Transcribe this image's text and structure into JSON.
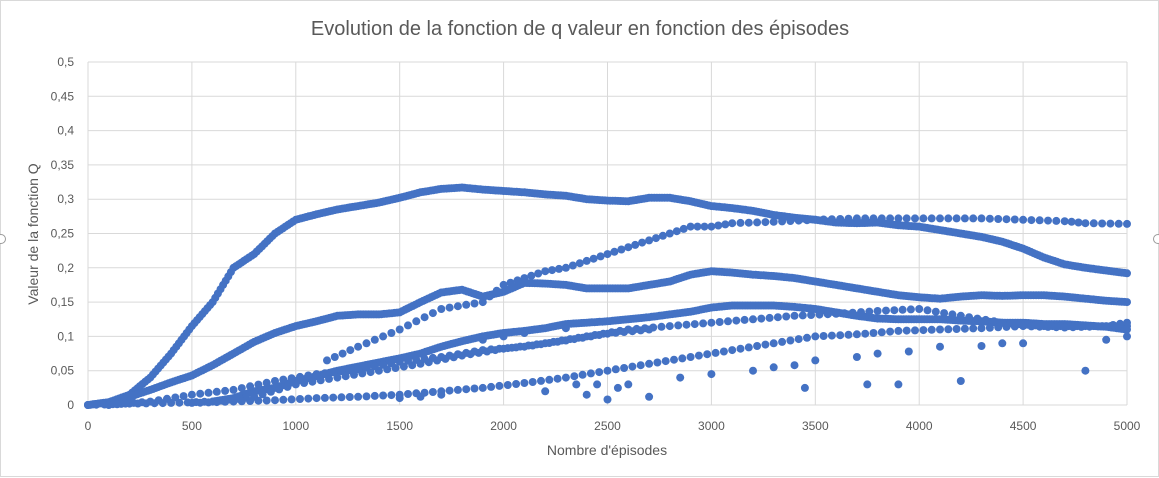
{
  "chart_data": {
    "type": "scatter",
    "title": "Evolution de la fonction de q valeur en fonction des épisodes",
    "xlabel": "Nombre d'épisodes",
    "ylabel": "Valeur de la fonction Q",
    "xlim": [
      0,
      5000
    ],
    "ylim": [
      0,
      0.5
    ],
    "x_ticks": [
      "0",
      "500",
      "1000",
      "1500",
      "2000",
      "2500",
      "3000",
      "3500",
      "4000",
      "4500",
      "5000"
    ],
    "y_ticks": [
      "0",
      "0,05",
      "0,1",
      "0,15",
      "0,2",
      "0,25",
      "0,3",
      "0,35",
      "0,4",
      "0,45",
      "0,5"
    ],
    "grid": true,
    "legend": "none",
    "marker_color": "#4472c4",
    "series": [
      {
        "points": [
          [
            0,
            0.0
          ],
          [
            100,
            0.004
          ],
          [
            200,
            0.015
          ],
          [
            300,
            0.04
          ],
          [
            400,
            0.075
          ],
          [
            500,
            0.115
          ],
          [
            600,
            0.15
          ],
          [
            700,
            0.2
          ],
          [
            800,
            0.22
          ],
          [
            900,
            0.25
          ],
          [
            1000,
            0.27
          ],
          [
            1100,
            0.278
          ],
          [
            1200,
            0.285
          ],
          [
            1300,
            0.29
          ],
          [
            1400,
            0.295
          ],
          [
            1500,
            0.302
          ],
          [
            1600,
            0.31
          ],
          [
            1700,
            0.315
          ],
          [
            1800,
            0.317
          ],
          [
            1900,
            0.314
          ],
          [
            2000,
            0.312
          ],
          [
            2100,
            0.31
          ],
          [
            2200,
            0.307
          ],
          [
            2300,
            0.305
          ],
          [
            2400,
            0.3
          ],
          [
            2500,
            0.298
          ],
          [
            2600,
            0.297
          ],
          [
            2700,
            0.302
          ],
          [
            2800,
            0.302
          ],
          [
            2900,
            0.297
          ],
          [
            3000,
            0.29
          ],
          [
            3100,
            0.287
          ],
          [
            3200,
            0.283
          ],
          [
            3300,
            0.277
          ],
          [
            3400,
            0.273
          ],
          [
            3500,
            0.27
          ],
          [
            3600,
            0.266
          ],
          [
            3700,
            0.265
          ],
          [
            3800,
            0.266
          ],
          [
            3900,
            0.262
          ],
          [
            4000,
            0.26
          ],
          [
            4100,
            0.255
          ],
          [
            4200,
            0.25
          ],
          [
            4300,
            0.245
          ],
          [
            4400,
            0.238
          ],
          [
            4500,
            0.228
          ],
          [
            4600,
            0.215
          ],
          [
            4700,
            0.205
          ],
          [
            4800,
            0.2
          ],
          [
            4900,
            0.196
          ],
          [
            5000,
            0.192
          ]
        ]
      },
      {
        "points": [
          [
            0,
            0.0
          ],
          [
            100,
            0.004
          ],
          [
            200,
            0.012
          ],
          [
            300,
            0.022
          ],
          [
            400,
            0.033
          ],
          [
            500,
            0.043
          ],
          [
            600,
            0.058
          ],
          [
            700,
            0.075
          ],
          [
            800,
            0.092
          ],
          [
            900,
            0.105
          ],
          [
            1000,
            0.115
          ],
          [
            1100,
            0.122
          ],
          [
            1200,
            0.13
          ],
          [
            1300,
            0.132
          ],
          [
            1400,
            0.132
          ],
          [
            1500,
            0.135
          ],
          [
            1600,
            0.15
          ],
          [
            1700,
            0.164
          ],
          [
            1800,
            0.168
          ],
          [
            1900,
            0.158
          ],
          [
            2000,
            0.165
          ],
          [
            2100,
            0.178
          ],
          [
            2200,
            0.177
          ],
          [
            2300,
            0.175
          ],
          [
            2400,
            0.17
          ],
          [
            2500,
            0.17
          ],
          [
            2600,
            0.17
          ],
          [
            2700,
            0.175
          ],
          [
            2800,
            0.18
          ],
          [
            2900,
            0.19
          ],
          [
            3000,
            0.195
          ],
          [
            3100,
            0.193
          ],
          [
            3200,
            0.19
          ],
          [
            3300,
            0.188
          ],
          [
            3400,
            0.185
          ],
          [
            3500,
            0.18
          ],
          [
            3600,
            0.175
          ],
          [
            3700,
            0.17
          ],
          [
            3800,
            0.165
          ],
          [
            3900,
            0.16
          ],
          [
            4000,
            0.157
          ],
          [
            4100,
            0.155
          ],
          [
            4200,
            0.158
          ],
          [
            4300,
            0.16
          ],
          [
            4400,
            0.159
          ],
          [
            4500,
            0.16
          ],
          [
            4600,
            0.16
          ],
          [
            4700,
            0.158
          ],
          [
            4800,
            0.155
          ],
          [
            4900,
            0.152
          ],
          [
            5000,
            0.15
          ]
        ]
      },
      {
        "points": [
          [
            600,
            0.005
          ],
          [
            700,
            0.01
          ],
          [
            800,
            0.02
          ],
          [
            900,
            0.025
          ],
          [
            1000,
            0.035
          ],
          [
            1100,
            0.042
          ],
          [
            1200,
            0.05
          ],
          [
            1300,
            0.056
          ],
          [
            1400,
            0.062
          ],
          [
            1500,
            0.068
          ],
          [
            1600,
            0.075
          ],
          [
            1700,
            0.085
          ],
          [
            1800,
            0.093
          ],
          [
            1900,
            0.1
          ],
          [
            2000,
            0.105
          ],
          [
            2100,
            0.108
          ],
          [
            2200,
            0.112
          ],
          [
            2300,
            0.118
          ],
          [
            2400,
            0.12
          ],
          [
            2500,
            0.122
          ],
          [
            2600,
            0.125
          ],
          [
            2700,
            0.128
          ],
          [
            2800,
            0.132
          ],
          [
            2900,
            0.136
          ],
          [
            3000,
            0.142
          ],
          [
            3100,
            0.145
          ],
          [
            3200,
            0.145
          ],
          [
            3300,
            0.145
          ],
          [
            3400,
            0.143
          ],
          [
            3500,
            0.14
          ],
          [
            3600,
            0.135
          ],
          [
            3700,
            0.13
          ],
          [
            3800,
            0.126
          ],
          [
            3900,
            0.125
          ],
          [
            4000,
            0.125
          ],
          [
            4100,
            0.125
          ],
          [
            4200,
            0.123
          ],
          [
            4300,
            0.122
          ],
          [
            4400,
            0.12
          ],
          [
            4500,
            0.12
          ],
          [
            4600,
            0.118
          ],
          [
            4700,
            0.118
          ],
          [
            4800,
            0.116
          ],
          [
            4900,
            0.114
          ],
          [
            5000,
            0.11
          ]
        ]
      },
      {
        "points": [
          [
            0,
            0.0
          ],
          [
            200,
            0.002
          ],
          [
            400,
            0.003
          ],
          [
            600,
            0.005
          ],
          [
            800,
            0.012
          ],
          [
            1000,
            0.03
          ],
          [
            1200,
            0.04
          ],
          [
            1400,
            0.05
          ],
          [
            1600,
            0.06
          ],
          [
            1800,
            0.072
          ],
          [
            2000,
            0.082
          ],
          [
            2200,
            0.09
          ],
          [
            2400,
            0.1
          ],
          [
            2600,
            0.11
          ],
          [
            2800,
            0.115
          ],
          [
            3000,
            0.12
          ],
          [
            3200,
            0.125
          ],
          [
            3400,
            0.13
          ],
          [
            3600,
            0.133
          ],
          [
            3800,
            0.137
          ],
          [
            4000,
            0.14
          ],
          [
            4200,
            0.13
          ],
          [
            4400,
            0.12
          ],
          [
            4600,
            0.115
          ],
          [
            4800,
            0.115
          ],
          [
            5000,
            0.115
          ]
        ]
      },
      {
        "points": [
          [
            500,
            0.003
          ],
          [
            700,
            0.005
          ],
          [
            900,
            0.007
          ],
          [
            1100,
            0.01
          ],
          [
            1300,
            0.012
          ],
          [
            1500,
            0.015
          ],
          [
            1700,
            0.02
          ],
          [
            1900,
            0.025
          ],
          [
            2100,
            0.032
          ],
          [
            2300,
            0.04
          ],
          [
            2500,
            0.05
          ],
          [
            2700,
            0.06
          ],
          [
            2900,
            0.07
          ],
          [
            3100,
            0.08
          ],
          [
            3300,
            0.09
          ],
          [
            3500,
            0.1
          ],
          [
            3700,
            0.103
          ],
          [
            3900,
            0.108
          ],
          [
            4100,
            0.11
          ],
          [
            4300,
            0.112
          ],
          [
            4500,
            0.115
          ],
          [
            4700,
            0.113
          ],
          [
            4900,
            0.115
          ],
          [
            5000,
            0.12
          ]
        ]
      },
      {
        "points": [
          [
            100,
            0.0
          ],
          [
            300,
            0.005
          ],
          [
            500,
            0.015
          ],
          [
            700,
            0.022
          ],
          [
            900,
            0.035
          ],
          [
            1100,
            0.045
          ],
          [
            1300,
            0.052
          ],
          [
            1500,
            0.063
          ],
          [
            1700,
            0.07
          ],
          [
            1900,
            0.08
          ],
          [
            2100,
            0.085
          ],
          [
            2300,
            0.094
          ],
          [
            2500,
            0.104
          ],
          [
            2700,
            0.11
          ]
        ]
      },
      {
        "points": [
          [
            1150,
            0.065
          ],
          [
            1300,
            0.085
          ],
          [
            1500,
            0.11
          ],
          [
            1700,
            0.14
          ],
          [
            1900,
            0.15
          ],
          [
            2000,
            0.175
          ],
          [
            2100,
            0.185
          ],
          [
            2200,
            0.195
          ],
          [
            2300,
            0.2
          ],
          [
            2400,
            0.21
          ],
          [
            2500,
            0.22
          ],
          [
            2600,
            0.23
          ],
          [
            2700,
            0.24
          ],
          [
            2800,
            0.25
          ],
          [
            2900,
            0.26
          ],
          [
            3000,
            0.26
          ],
          [
            3100,
            0.265
          ],
          [
            3300,
            0.267
          ],
          [
            3500,
            0.27
          ],
          [
            3700,
            0.272
          ],
          [
            3900,
            0.272
          ],
          [
            4100,
            0.272
          ],
          [
            4300,
            0.272
          ],
          [
            4500,
            0.27
          ],
          [
            4700,
            0.268
          ],
          [
            4800,
            0.265
          ],
          [
            5000,
            0.264
          ]
        ]
      },
      {
        "points": [
          [
            1900,
            0.095
          ],
          [
            2000,
            0.1
          ],
          [
            2100,
            0.105
          ],
          [
            2300,
            0.112
          ],
          [
            2350,
            0.03
          ],
          [
            2400,
            0.015
          ],
          [
            2450,
            0.03
          ],
          [
            2500,
            0.008
          ],
          [
            2550,
            0.025
          ],
          [
            2600,
            0.03
          ],
          [
            2700,
            0.012
          ],
          [
            2850,
            0.04
          ],
          [
            3000,
            0.045
          ],
          [
            3200,
            0.05
          ],
          [
            3300,
            0.055
          ],
          [
            3400,
            0.058
          ],
          [
            3450,
            0.025
          ],
          [
            3500,
            0.065
          ],
          [
            3700,
            0.07
          ],
          [
            3750,
            0.03
          ],
          [
            3800,
            0.075
          ],
          [
            3900,
            0.03
          ],
          [
            3950,
            0.078
          ],
          [
            4100,
            0.085
          ],
          [
            4200,
            0.035
          ],
          [
            4300,
            0.086
          ],
          [
            4400,
            0.09
          ],
          [
            4500,
            0.09
          ],
          [
            4800,
            0.05
          ],
          [
            4900,
            0.095
          ],
          [
            5000,
            0.1
          ],
          [
            1500,
            0.01
          ],
          [
            1600,
            0.012
          ],
          [
            1700,
            0.015
          ],
          [
            2200,
            0.02
          ]
        ]
      }
    ]
  }
}
